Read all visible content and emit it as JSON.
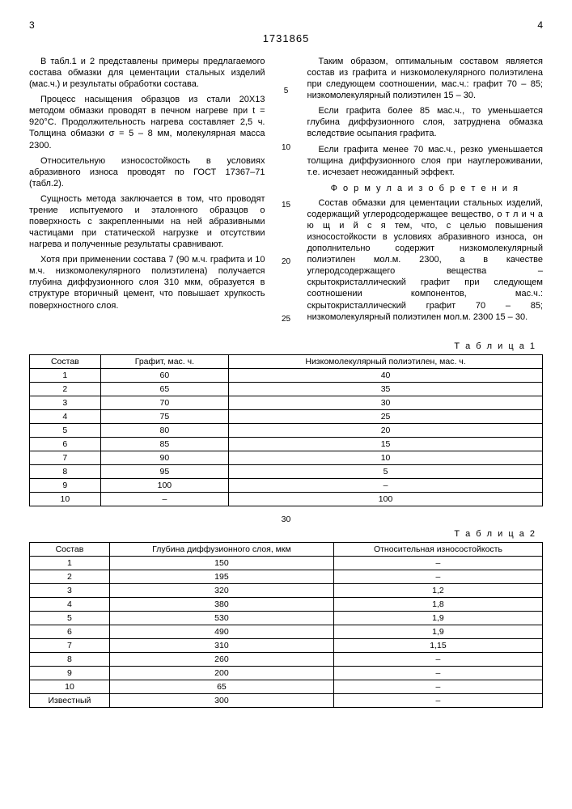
{
  "header": {
    "page_left": "3",
    "page_right": "4",
    "doc_number": "1731865"
  },
  "left_col": {
    "p1": "В табл.1 и 2 представлены примеры предлагаемого состава обмазки для цементации стальных изделий (мас.ч.) и результаты обработки состава.",
    "p2": "Процесс насыщения образцов из стали 20Х13 методом обмазки проводят в печном нагреве при t = 920°С. Продолжительность нагрева составляет 2,5 ч. Толщина обмазки σ = 5 – 8 мм, молекулярная масса 2300.",
    "p3": "Относительную износостойкость в условиях абразивного износа проводят по ГОСТ 17367–71 (табл.2).",
    "p4": "Сущность метода заключается в том, что проводят трение испытуемого и эталонного образцов о поверхность с закрепленными на ней абразивными частицами при статической нагрузке и отсутствии нагрева и полученные результаты сравнивают.",
    "p5": "Хотя при применении состава 7 (90 м.ч. графита и 10 м.ч. низкомолекулярного полиэтилена) получается глубина диффузионного слоя 310 мкм, образуется в структуре вторичный цемент, что повышает хрупкость поверхностного слоя."
  },
  "markers": {
    "m5": "5",
    "m10": "10",
    "m15": "15",
    "m20": "20",
    "m25": "25"
  },
  "right_col": {
    "p1": "Таким образом, оптимальным составом является состав из графита и низкомолекулярного полиэтилена при следующем соотношении, мас.ч.: графит 70 – 85; низкомолекулярный полиэтилен 15 – 30.",
    "p2": "Если графита более 85 мас.ч., то уменьшается глубина диффузионного слоя, затруднена обмазка вследствие осыпания графита.",
    "p3": "Если графита менее 70 мас.ч., резко уменьшается толщина диффузионного слоя при науглероживании, т.е. исчезает неожиданный эффект.",
    "formula_title": "Ф о р м у л а  и з о б р е т е н и я",
    "p4": "Состав обмазки для цементации стальных изделий, содержащий углеродсодержащее вещество, о т л и ч а ю щ и й с я тем, что, с целью повышения износостойкости в условиях абразивного износа, он дополнительно содержит низкомолекулярный полиэтилен мол.м. 2300, а в качестве углеродсодержащего вещества – скрытокристаллический графит при следующем соотношении компонентов, мас.ч.: скрытокристаллический графит 70 – 85; низкомолекулярный полиэтилен мол.м. 2300 15 – 30."
  },
  "table1": {
    "label": "Т а б л и ц а  1",
    "headers": [
      "Состав",
      "Графит, мас. ч.",
      "Низкомолекулярный полиэтилен, мас. ч."
    ],
    "rows": [
      [
        "1",
        "60",
        "40"
      ],
      [
        "2",
        "65",
        "35"
      ],
      [
        "3",
        "70",
        "30"
      ],
      [
        "4",
        "75",
        "25"
      ],
      [
        "5",
        "80",
        "20"
      ],
      [
        "6",
        "85",
        "15"
      ],
      [
        "7",
        "90",
        "10"
      ],
      [
        "8",
        "95",
        "5"
      ],
      [
        "9",
        "100",
        "–"
      ],
      [
        "10",
        "–",
        "100"
      ]
    ]
  },
  "mid_marker": "30",
  "table2": {
    "label": "Т а б л и ц а  2",
    "headers": [
      "Состав",
      "Глубина диффузионного слоя, мкм",
      "Относительная износостойкость"
    ],
    "rows": [
      [
        "1",
        "150",
        "–"
      ],
      [
        "2",
        "195",
        "–"
      ],
      [
        "3",
        "320",
        "1,2"
      ],
      [
        "4",
        "380",
        "1,8"
      ],
      [
        "5",
        "530",
        "1,9"
      ],
      [
        "6",
        "490",
        "1,9"
      ],
      [
        "7",
        "310",
        "1,15"
      ],
      [
        "8",
        "260",
        "–"
      ],
      [
        "9",
        "200",
        "–"
      ],
      [
        "10",
        "65",
        "–"
      ],
      [
        "Известный",
        "300",
        "–"
      ]
    ]
  }
}
